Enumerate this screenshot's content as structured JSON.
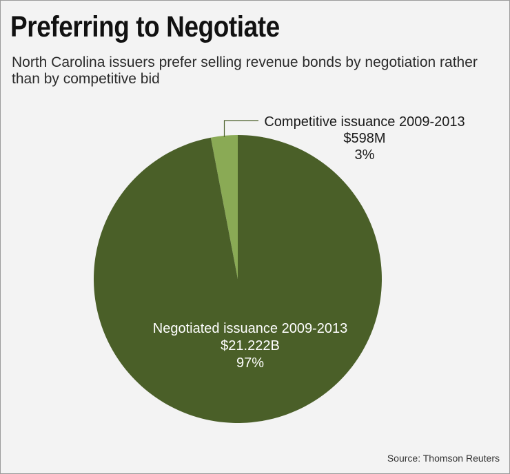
{
  "chart_data": {
    "type": "pie",
    "title": "Preferring to Negotiate",
    "subtitle": "North Carolina issuers prefer selling revenue bonds by negotiation rather than by competitive bid",
    "slices": [
      {
        "name": "Negotiated issuance 2009-2013",
        "amount": "$21.222B",
        "percent": "97%",
        "value": 97,
        "color": "#4a5f28"
      },
      {
        "name": "Competitive issuance 2009-2013",
        "amount": "$598M",
        "percent": "3%",
        "value": 3,
        "color": "#8aaa55"
      }
    ],
    "source": "Source: Thomson Reuters"
  },
  "colors": {
    "background": "#f3f3f3",
    "border": "#9a9a9a",
    "leader_line": "#4a5f28"
  }
}
